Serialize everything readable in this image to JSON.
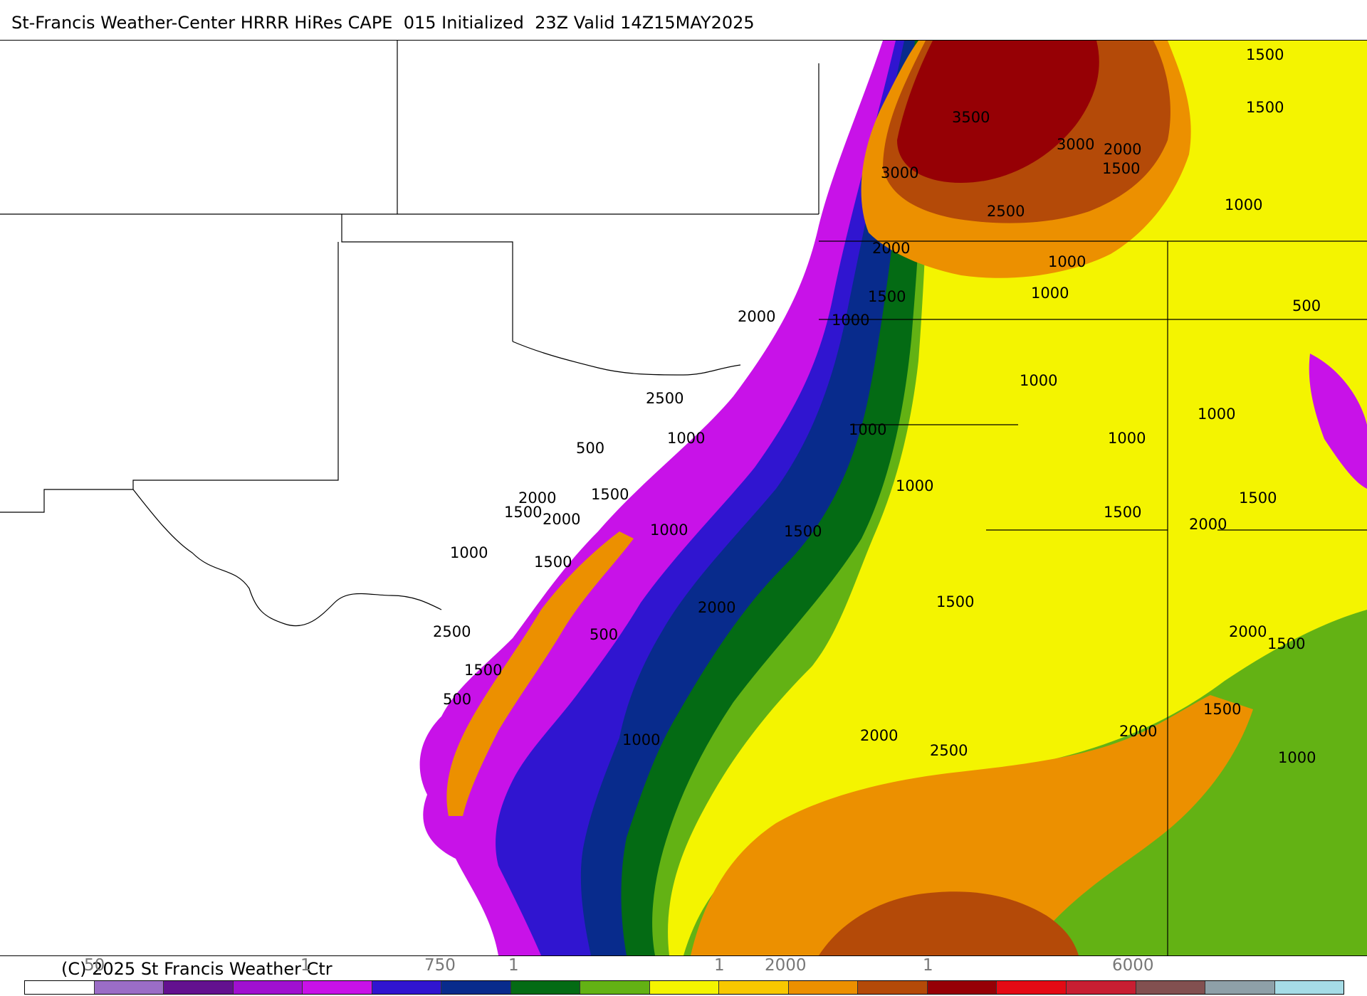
{
  "header": {
    "title": "St-Francis Weather-Center HRRR HiRes CAPE  015 Initialized  23Z Valid 14Z15MAY2025"
  },
  "map": {
    "contour_labels": [
      {
        "text": "3500"
      },
      {
        "text": "3000"
      },
      {
        "text": "3000"
      },
      {
        "text": "2000"
      },
      {
        "text": "1500"
      },
      {
        "text": "1500"
      },
      {
        "text": "1500"
      },
      {
        "text": "2500"
      },
      {
        "text": "1000"
      },
      {
        "text": "2000"
      },
      {
        "text": "1000"
      },
      {
        "text": "1500"
      },
      {
        "text": "1000"
      },
      {
        "text": "500"
      },
      {
        "text": "2000"
      },
      {
        "text": "1000"
      },
      {
        "text": "2500"
      },
      {
        "text": "1000"
      },
      {
        "text": "1000"
      },
      {
        "text": "1000"
      },
      {
        "text": "1000"
      },
      {
        "text": "1000"
      },
      {
        "text": "500"
      },
      {
        "text": "1500"
      },
      {
        "text": "2000"
      },
      {
        "text": "1500"
      },
      {
        "text": "2000"
      },
      {
        "text": "1500"
      },
      {
        "text": "1000"
      },
      {
        "text": "1500"
      },
      {
        "text": "1500"
      },
      {
        "text": "2000"
      },
      {
        "text": "1000"
      },
      {
        "text": "1000"
      },
      {
        "text": "1500"
      },
      {
        "text": "2000"
      },
      {
        "text": "500"
      },
      {
        "text": "2500"
      },
      {
        "text": "1500"
      },
      {
        "text": "2000"
      },
      {
        "text": "1500"
      },
      {
        "text": "500"
      },
      {
        "text": "2000"
      },
      {
        "text": "2500"
      },
      {
        "text": "1500"
      },
      {
        "text": "1500"
      },
      {
        "text": "2000"
      },
      {
        "text": "1000"
      },
      {
        "text": "1000"
      }
    ]
  },
  "footer": {
    "copyright": "(C) 2025 St Francis Weather Ctr",
    "ticks": [
      {
        "text": "50"
      },
      {
        "text": "1"
      },
      {
        "text": "750"
      },
      {
        "text": "1"
      },
      {
        "text": "1"
      },
      {
        "text": "2000"
      },
      {
        "text": "1"
      },
      {
        "text": "6000"
      }
    ]
  },
  "colorbar": [
    "#ffffff",
    "#9b6dc6",
    "#63118f",
    "#a010d0",
    "#c812e8",
    "#3015d0",
    "#082b8c",
    "#046b14",
    "#63b214",
    "#f4f400",
    "#f8c800",
    "#ec9000",
    "#b44a08",
    "#960005",
    "#e40a14",
    "#c81e32",
    "#825050",
    "#8ea0a8",
    "#a6dce6"
  ]
}
